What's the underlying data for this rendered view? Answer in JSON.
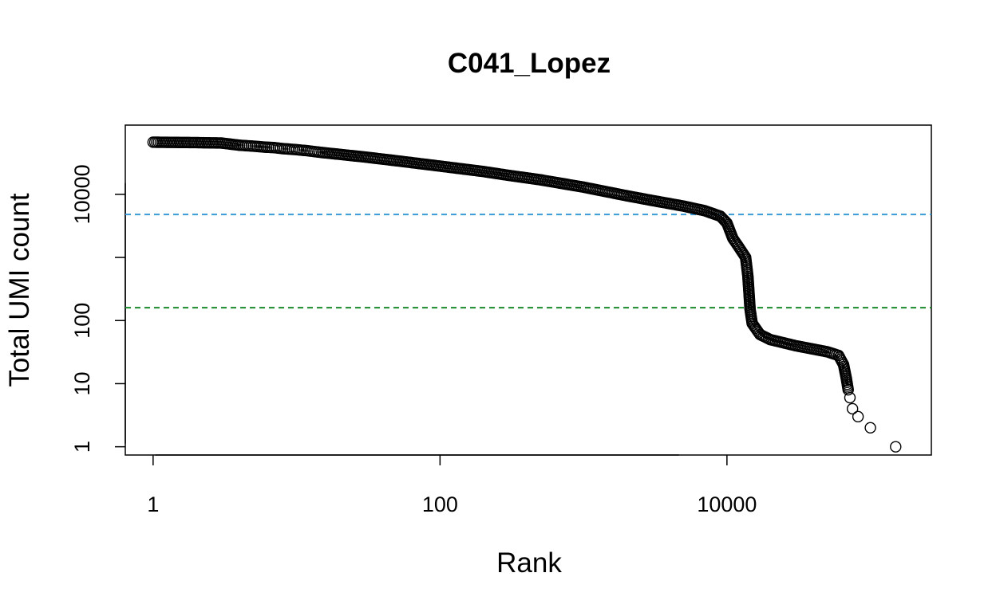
{
  "chart_data": {
    "type": "scatter",
    "title": "C041_Lopez",
    "xlabel": "Rank",
    "ylabel": "Total UMI count",
    "x_scale": "log",
    "y_scale": "log",
    "xlim": [
      0.64,
      266000
    ],
    "ylim": [
      0.74,
      125000
    ],
    "x_ticks": [
      1,
      100,
      10000
    ],
    "x_tick_labels": [
      "1",
      "100",
      "10000"
    ],
    "y_ticks": [
      1,
      10,
      100,
      1000,
      10000
    ],
    "y_tick_labels": [
      "1",
      "10",
      "100",
      "",
      "10000"
    ],
    "grid": false,
    "legend": "none",
    "reference_lines": [
      {
        "orientation": "horizontal",
        "y": 4800,
        "color": "#3a9bd6",
        "style": "dashed"
      },
      {
        "orientation": "horizontal",
        "y": 160,
        "color": "#1a8a2a",
        "style": "dashed"
      }
    ],
    "series": [
      {
        "marker": "open-circle",
        "color": "#000000",
        "points": [
          [
            1,
            67000
          ],
          [
            2,
            66000
          ],
          [
            3,
            65000
          ],
          [
            4,
            60000
          ],
          [
            5,
            58000
          ],
          [
            6,
            56000
          ],
          [
            7,
            55000
          ],
          [
            8,
            53000
          ],
          [
            9,
            52000
          ],
          [
            10,
            51000
          ],
          [
            12,
            49000
          ],
          [
            15,
            46000
          ],
          [
            20,
            43000
          ],
          [
            30,
            39000
          ],
          [
            50,
            34000
          ],
          [
            100,
            28000
          ],
          [
            200,
            23000
          ],
          [
            300,
            20000
          ],
          [
            500,
            17000
          ],
          [
            1000,
            13000
          ],
          [
            2000,
            9500
          ],
          [
            3000,
            8000
          ],
          [
            5000,
            6500
          ],
          [
            7000,
            5500
          ],
          [
            9000,
            4500
          ],
          [
            10000,
            3500
          ],
          [
            11000,
            2000
          ],
          [
            12000,
            1500
          ],
          [
            13500,
            1000
          ],
          [
            14000,
            500
          ],
          [
            14500,
            150
          ],
          [
            15000,
            90
          ],
          [
            17000,
            60
          ],
          [
            20000,
            50
          ],
          [
            30000,
            40
          ],
          [
            50000,
            32
          ],
          [
            60000,
            28
          ],
          [
            65000,
            20
          ],
          [
            68000,
            12
          ],
          [
            70000,
            8
          ],
          [
            72000,
            6
          ],
          [
            75000,
            4
          ],
          [
            82000,
            3
          ],
          [
            100000,
            2
          ],
          [
            150000,
            1
          ]
        ]
      }
    ]
  }
}
